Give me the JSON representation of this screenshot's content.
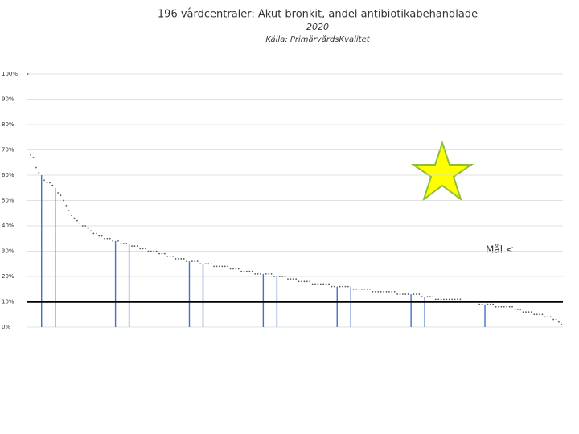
{
  "chart_data": {
    "type": "dot-bar",
    "title": "196 vårdcentraler: Akut bronkit, andel antibiotikabehandlade",
    "subtitle": "2020",
    "source": "Källa: PrimärvårdsKvalitet",
    "annotation": "Mål <",
    "target": 10,
    "ylim": [
      0,
      100
    ],
    "yticks": [
      {
        "value": 0,
        "label": "0%"
      },
      {
        "value": 10,
        "label": "10%"
      },
      {
        "value": 20,
        "label": "20%"
      },
      {
        "value": 30,
        "label": "30%"
      },
      {
        "value": 40,
        "label": "40%"
      },
      {
        "value": 50,
        "label": "50%"
      },
      {
        "value": 60,
        "label": "60%"
      },
      {
        "value": 70,
        "label": "70%"
      },
      {
        "value": 80,
        "label": "80%"
      },
      {
        "value": 90,
        "label": "90%"
      },
      {
        "value": 100,
        "label": "100%"
      }
    ],
    "grid": true,
    "series": [
      {
        "color": "#595959",
        "values": [
          100,
          68,
          67,
          63,
          61,
          null,
          58,
          57,
          57,
          56,
          null,
          53,
          52,
          50,
          48,
          46,
          44,
          43,
          42,
          41,
          40,
          40,
          39,
          38,
          37,
          37,
          36,
          36,
          35,
          35,
          35,
          34,
          null,
          34,
          33,
          33,
          33,
          null,
          32,
          32,
          32,
          31,
          31,
          31,
          30,
          30,
          30,
          30,
          29,
          29,
          29,
          28,
          28,
          28,
          27,
          27,
          27,
          27,
          26,
          null,
          26,
          26,
          26,
          25,
          null,
          25,
          25,
          25,
          24,
          24,
          24,
          24,
          24,
          24,
          23,
          23,
          23,
          23,
          22,
          22,
          22,
          22,
          22,
          21,
          21,
          21,
          null,
          21,
          21,
          21,
          20,
          null,
          20,
          20,
          20,
          19,
          19,
          19,
          19,
          18,
          18,
          18,
          18,
          18,
          17,
          17,
          17,
          17,
          17,
          17,
          17,
          16,
          16,
          null,
          16,
          16,
          16,
          16,
          null,
          15,
          15,
          15,
          15,
          15,
          15,
          15,
          14,
          14,
          14,
          14,
          14,
          14,
          14,
          14,
          14,
          13,
          13,
          13,
          13,
          13,
          null,
          13,
          13,
          13,
          12,
          null,
          12,
          12,
          12,
          11,
          11,
          11,
          11,
          11,
          11,
          11,
          11,
          11,
          11,
          10,
          10,
          10,
          10,
          10,
          10,
          9,
          9,
          null,
          9,
          9,
          9,
          8,
          8,
          8,
          8,
          8,
          8,
          8,
          7,
          7,
          7,
          6,
          6,
          6,
          6,
          5,
          5,
          5,
          5,
          4,
          4,
          4,
          3,
          3,
          2,
          1
        ]
      },
      {
        "color": "#4472c4",
        "values": [
          null,
          null,
          null,
          null,
          null,
          60,
          null,
          null,
          null,
          null,
          55,
          null,
          null,
          null,
          null,
          null,
          null,
          null,
          null,
          null,
          null,
          null,
          null,
          null,
          null,
          null,
          null,
          null,
          null,
          null,
          null,
          null,
          34,
          null,
          null,
          null,
          null,
          33,
          null,
          null,
          null,
          null,
          null,
          null,
          null,
          null,
          null,
          null,
          null,
          null,
          null,
          null,
          null,
          null,
          null,
          null,
          null,
          null,
          null,
          26,
          null,
          null,
          null,
          null,
          25,
          null,
          null,
          null,
          null,
          null,
          null,
          null,
          null,
          null,
          null,
          null,
          null,
          null,
          null,
          null,
          null,
          null,
          null,
          null,
          null,
          null,
          21,
          null,
          null,
          null,
          null,
          20,
          null,
          null,
          null,
          null,
          null,
          null,
          null,
          null,
          null,
          null,
          null,
          null,
          null,
          null,
          null,
          null,
          null,
          null,
          null,
          null,
          null,
          16,
          null,
          null,
          null,
          null,
          16,
          null,
          null,
          null,
          null,
          null,
          null,
          null,
          null,
          null,
          null,
          null,
          null,
          null,
          null,
          null,
          null,
          null,
          null,
          null,
          null,
          null,
          13,
          null,
          null,
          null,
          null,
          12,
          null,
          null,
          null,
          null,
          null,
          null,
          null,
          null,
          null,
          null,
          null,
          null,
          null,
          null,
          null,
          null,
          null,
          null,
          null,
          null,
          null,
          9,
          null,
          null,
          null,
          null,
          null,
          null,
          null,
          null,
          null,
          null,
          null,
          null,
          null,
          null,
          null,
          null,
          null,
          null,
          null,
          null,
          null,
          null,
          null,
          null,
          null,
          null,
          null
        ]
      }
    ]
  }
}
